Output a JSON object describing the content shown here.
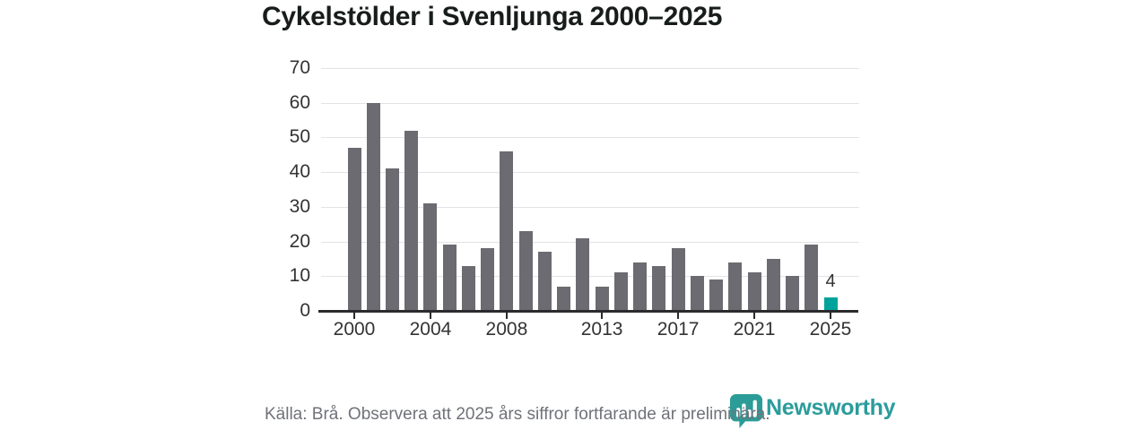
{
  "page": {
    "title": "Cykelstölder i Svenljunga 2000–2025"
  },
  "footer": {
    "source_text": "Källa: Brå. Observera att 2025 års siffror fortfarande är preliminära."
  },
  "logo": {
    "brand": "Newsworthy",
    "icon": "newsworthy-bubble-barchart-icon",
    "color": "#2b9c97"
  },
  "chart_data": {
    "type": "bar",
    "title": "Cykelstölder i Svenljunga 2000–2025",
    "x": [
      2000,
      2001,
      2002,
      2003,
      2004,
      2005,
      2006,
      2007,
      2008,
      2009,
      2010,
      2011,
      2012,
      2013,
      2014,
      2015,
      2016,
      2017,
      2018,
      2019,
      2020,
      2021,
      2022,
      2023,
      2024,
      2025
    ],
    "values": [
      47,
      60,
      41,
      52,
      31,
      19,
      13,
      18,
      46,
      23,
      17,
      7,
      21,
      7,
      11,
      14,
      13,
      18,
      10,
      9,
      14,
      11,
      15,
      10,
      19,
      4
    ],
    "highlight_year": 2025,
    "highlight_value_label": "4",
    "ylim": [
      0,
      70
    ],
    "yticks": [
      0,
      10,
      20,
      30,
      40,
      50,
      60,
      70
    ],
    "xticks": [
      2000,
      2004,
      2008,
      2013,
      2017,
      2021,
      2025
    ],
    "grid": "horizontal",
    "legend": "none",
    "colors": {
      "bar": "#6c6b71",
      "highlight_bar": "#00a39c",
      "gridline": "#e3e3e6",
      "axis_line": "#2b2b2e",
      "tick_label": "#333333",
      "title": "#171d1b",
      "source_text": "#6f7278"
    }
  }
}
